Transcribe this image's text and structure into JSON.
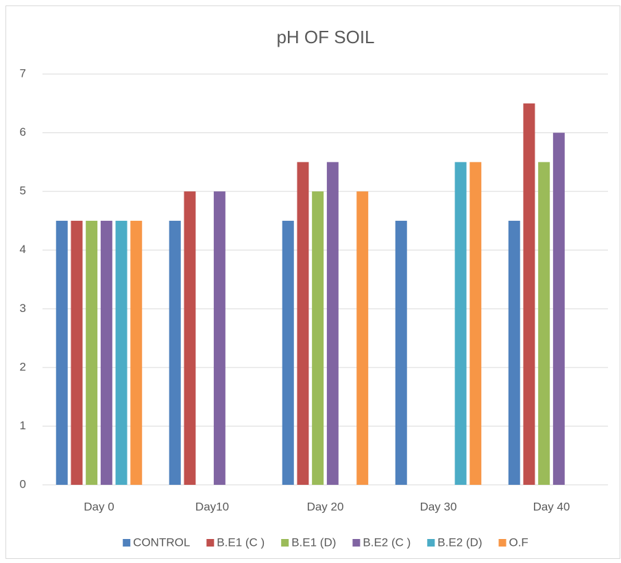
{
  "chart_data": {
    "type": "bar",
    "title": "pH OF SOIL",
    "categories": [
      "Day 0",
      "Day10",
      "Day 20",
      "Day 30",
      "Day 40"
    ],
    "series": [
      {
        "name": "CONTROL",
        "color": "#4f81bd",
        "values": [
          4.5,
          4.5,
          4.5,
          4.5,
          4.5
        ]
      },
      {
        "name": "B.E1 (C )",
        "color": "#c0504d",
        "values": [
          4.5,
          5,
          5.5,
          null,
          6.5
        ]
      },
      {
        "name": "B.E1 (D)",
        "color": "#9bbb59",
        "values": [
          4.5,
          null,
          5,
          null,
          5.5
        ]
      },
      {
        "name": "B.E2 (C )",
        "color": "#8064a2",
        "values": [
          4.5,
          5,
          5.5,
          null,
          6
        ]
      },
      {
        "name": "B.E2 (D)",
        "color": "#4bacc6",
        "values": [
          4.5,
          null,
          null,
          5.5,
          null
        ]
      },
      {
        "name": "O.F",
        "color": "#f79646",
        "values": [
          4.5,
          null,
          5,
          5.5,
          null
        ]
      }
    ],
    "ylim": [
      0,
      7
    ],
    "yticks": [
      0,
      1,
      2,
      3,
      4,
      5,
      6,
      7
    ],
    "grid": true,
    "legend": "bottom"
  }
}
